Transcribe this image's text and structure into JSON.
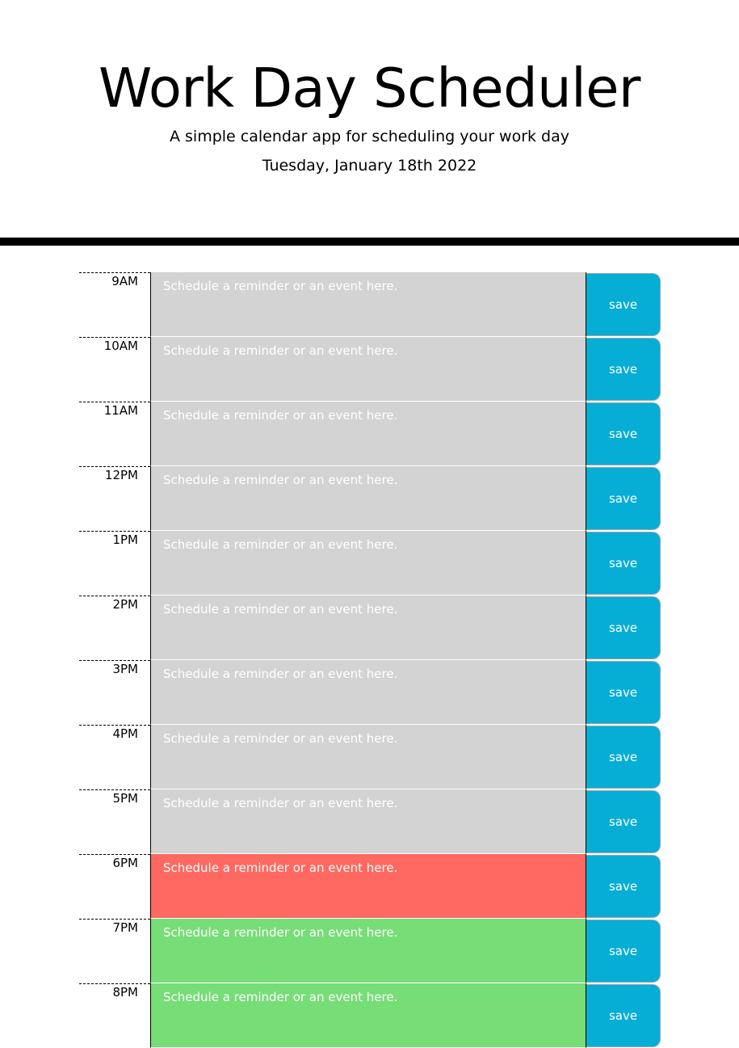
{
  "header": {
    "title": "Work Day Scheduler",
    "subtitle": "A simple calendar app for scheduling your work day",
    "current_day": "Tuesday, January 18th 2022"
  },
  "colors": {
    "past": "#d3d3d3",
    "present": "#ff6961",
    "future": "#77dd77",
    "save_button": "#06aed5"
  },
  "schedule": {
    "placeholder": "Schedule a reminder or an event here.",
    "save_label": "save",
    "rows": [
      {
        "hour": "9AM",
        "status": "past",
        "text": ""
      },
      {
        "hour": "10AM",
        "status": "past",
        "text": ""
      },
      {
        "hour": "11AM",
        "status": "past",
        "text": ""
      },
      {
        "hour": "12PM",
        "status": "past",
        "text": ""
      },
      {
        "hour": "1PM",
        "status": "past",
        "text": ""
      },
      {
        "hour": "2PM",
        "status": "past",
        "text": ""
      },
      {
        "hour": "3PM",
        "status": "past",
        "text": ""
      },
      {
        "hour": "4PM",
        "status": "past",
        "text": ""
      },
      {
        "hour": "5PM",
        "status": "past",
        "text": ""
      },
      {
        "hour": "6PM",
        "status": "present",
        "text": ""
      },
      {
        "hour": "7PM",
        "status": "future",
        "text": ""
      },
      {
        "hour": "8PM",
        "status": "future",
        "text": ""
      }
    ]
  }
}
